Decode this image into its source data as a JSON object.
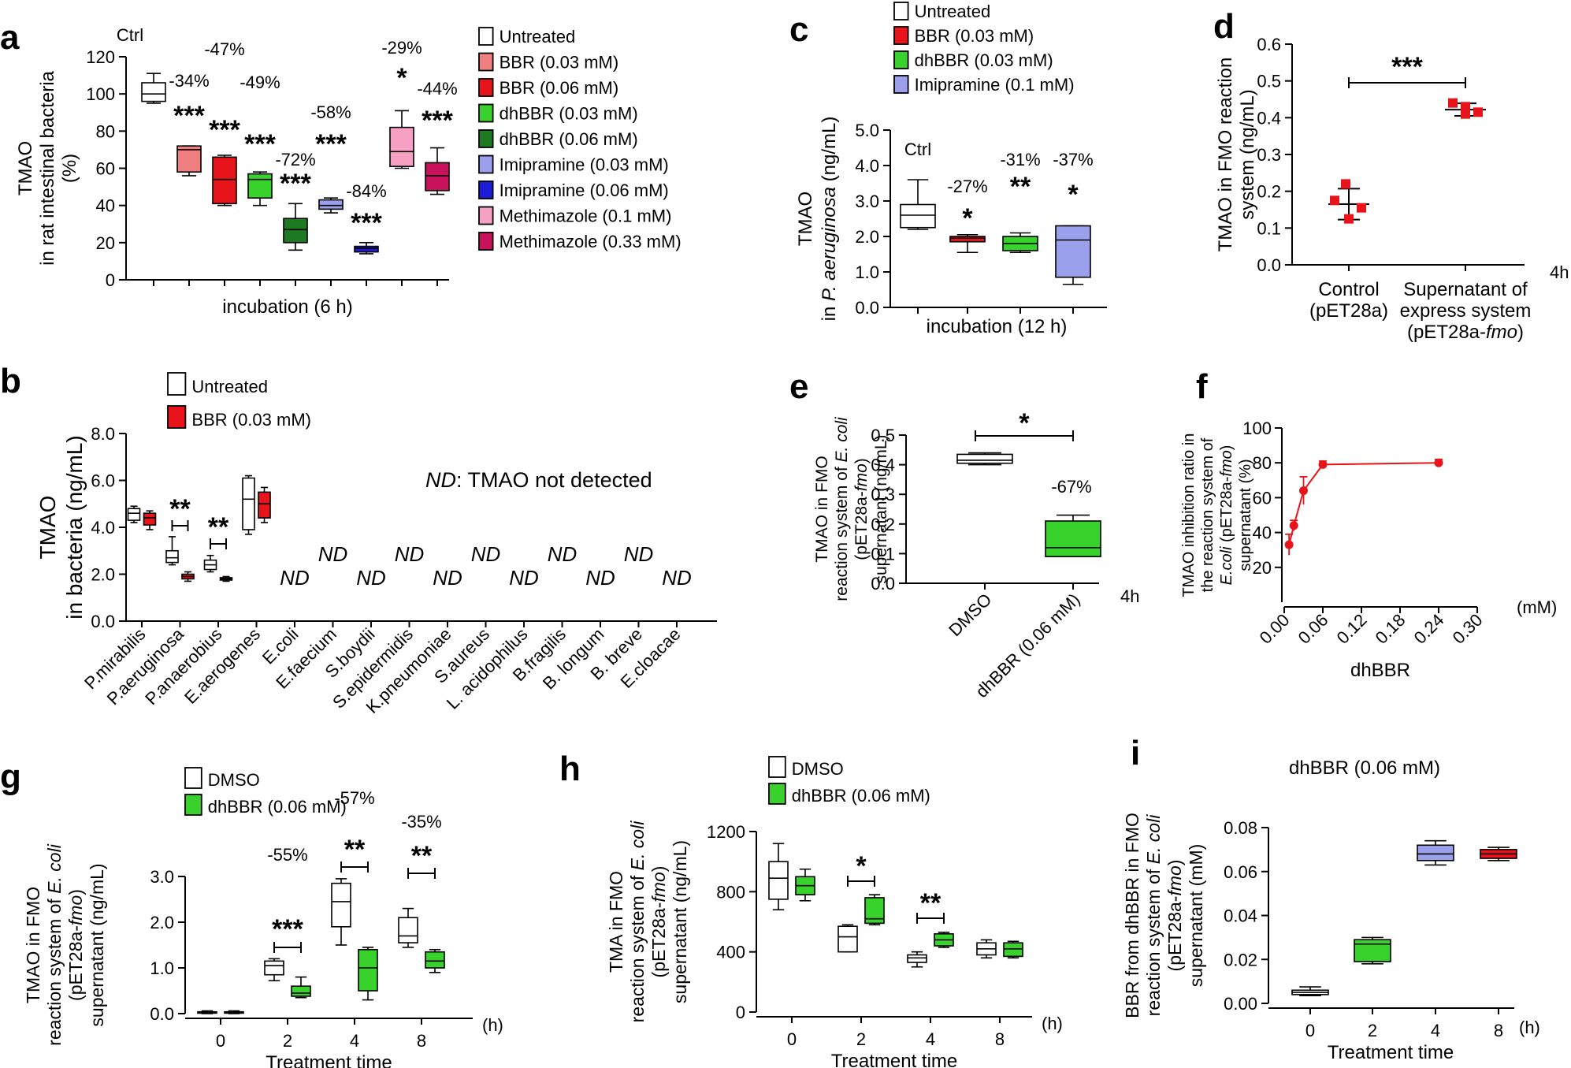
{
  "colors": {
    "white": "#ffffff",
    "light_red": "#f08080",
    "red": "#e8141b",
    "green": "#39d12b",
    "dark_green": "#1e7a22",
    "lavender": "#9aa0ec",
    "blue": "#1c1cd8",
    "pink": "#f6a0c4",
    "magenta": "#c8135c",
    "point_red": "#e8141b",
    "ice_blue": "#c8c8f0"
  },
  "chart_data": [
    {
      "panel": "a",
      "type": "box",
      "ylabel_lines": [
        "TMAO",
        "in rat intestinal bacteria",
        "(%)"
      ],
      "xlabel": "incubation (6 h)",
      "ylim": [
        0,
        120
      ],
      "yticks": [
        "0",
        "20",
        "40",
        "60",
        "80",
        "100",
        "120"
      ],
      "ctrl_label": "Ctrl",
      "groups": [
        {
          "name": "Untreated",
          "color_key": "white",
          "min": 95,
          "q1": 96,
          "median": 100,
          "q3": 106,
          "max": 111,
          "pct": "",
          "sig": ""
        },
        {
          "name": "BBR (0.03 mM)",
          "color_key": "light_red",
          "min": 56,
          "q1": 58,
          "median": 70,
          "q3": 72,
          "max": 72,
          "pct": "-34%",
          "sig": "***"
        },
        {
          "name": "BBR (0.06 mM)",
          "color_key": "red",
          "min": 40,
          "q1": 41,
          "median": 54,
          "q3": 66,
          "max": 67,
          "pct": "-47%",
          "sig": "***"
        },
        {
          "name": "dhBBR (0.03 mM)",
          "color_key": "green",
          "min": 40,
          "q1": 44,
          "median": 54,
          "q3": 57,
          "max": 58,
          "pct": "-49%",
          "sig": "***"
        },
        {
          "name": "dhBBR (0.06 mM)",
          "color_key": "dark_green",
          "min": 16,
          "q1": 20,
          "median": 27,
          "q3": 33,
          "max": 41,
          "pct": "-72%",
          "sig": "***"
        },
        {
          "name": "Imipramine (0.03 mM)",
          "color_key": "lavender",
          "min": 36,
          "q1": 38,
          "median": 40,
          "q3": 43,
          "max": 44,
          "pct": "-58%",
          "sig": "***"
        },
        {
          "name": "Imipramine (0.06 mM)",
          "color_key": "blue",
          "min": 14,
          "q1": 15,
          "median": 17,
          "q3": 18,
          "max": 20,
          "pct": "-84%",
          "sig": "***"
        },
        {
          "name": "Methimazole (0.1 mM)",
          "color_key": "pink",
          "min": 60,
          "q1": 61,
          "median": 69,
          "q3": 82,
          "max": 91,
          "pct": "-29%",
          "sig": "*"
        },
        {
          "name": "Methimazole (0.33 mM)",
          "color_key": "magenta",
          "min": 46,
          "q1": 48,
          "median": 56,
          "q3": 63,
          "max": 71,
          "pct": "-44%",
          "sig": "***"
        }
      ]
    },
    {
      "panel": "b",
      "type": "box",
      "ylabel_lines": [
        "TMAO",
        "in bacteria (ng/mL)"
      ],
      "ylim": [
        0,
        8
      ],
      "yticks": [
        "0.0",
        "2.0",
        "4.0",
        "6.0",
        "8.0"
      ],
      "legend": [
        {
          "label": "Untreated",
          "color_key": "white"
        },
        {
          "label": "BBR (0.03 mM)",
          "color_key": "red"
        }
      ],
      "nd_note_prefix": "ND",
      "nd_note_suffix": ": TMAO not detected",
      "nd_label": "ND",
      "species": [
        "P.mirabilis",
        "P.aeruginosa",
        "P.anaerobius",
        "E.aerogenes",
        "E.coli",
        "E.faecium",
        "S.boydii",
        "S.epidermidis",
        "K.pneumoniae",
        "S.aureus",
        "L. acidophilus",
        "B.fragilis",
        "B. longum",
        "B. breve",
        "E.cloacae"
      ],
      "boxes": [
        {
          "species": 0,
          "untreated": {
            "min": 4.2,
            "q1": 4.3,
            "median": 4.6,
            "q3": 4.8,
            "max": 4.9
          },
          "bbr": {
            "min": 3.9,
            "q1": 4.1,
            "median": 4.4,
            "q3": 4.6,
            "max": 4.7
          }
        },
        {
          "species": 1,
          "untreated": {
            "min": 2.4,
            "q1": 2.5,
            "median": 2.7,
            "q3": 3.0,
            "max": 3.6
          },
          "bbr": {
            "min": 1.7,
            "q1": 1.8,
            "median": 1.9,
            "q3": 2.0,
            "max": 2.1
          }
        },
        {
          "species": 2,
          "untreated": {
            "min": 2.1,
            "q1": 2.2,
            "median": 2.4,
            "q3": 2.6,
            "max": 2.8
          },
          "bbr": {
            "min": 1.7,
            "q1": 1.75,
            "median": 1.8,
            "q3": 1.85,
            "max": 1.9
          }
        },
        {
          "species": 3,
          "untreated": {
            "min": 3.7,
            "q1": 3.9,
            "median": 5.2,
            "q3": 6.1,
            "max": 6.2
          },
          "bbr": {
            "min": 4.2,
            "q1": 4.4,
            "median": 5.0,
            "q3": 5.5,
            "max": 5.7
          }
        }
      ],
      "sig": [
        {
          "species": 1,
          "text": "**"
        },
        {
          "species": 2,
          "text": "**"
        }
      ],
      "nd_species": [
        4,
        5,
        6,
        7,
        8,
        9,
        10,
        11,
        12,
        13,
        14
      ]
    },
    {
      "panel": "c",
      "type": "box",
      "ylabel_line1": "TMAO",
      "ylabel_line2_prefix": "in ",
      "ylabel_line2_italic": "P. aeruginosa",
      "ylabel_line2_suffix": " (ng/mL)",
      "xlabel": "incubation (12 h)",
      "ylim": [
        0,
        5
      ],
      "yticks": [
        "0.0",
        "1.0",
        "2.0",
        "3.0",
        "4.0",
        "5.0"
      ],
      "ctrl_label": "Ctrl",
      "legend": [
        {
          "label": "Untreated",
          "color_key": "white"
        },
        {
          "label": "BBR (0.03 mM)",
          "color_key": "red"
        },
        {
          "label": "dhBBR (0.03 mM)",
          "color_key": "green"
        },
        {
          "label": "Imipramine (0.1 mM)",
          "color_key": "lavender"
        }
      ],
      "groups": [
        {
          "name": "Untreated",
          "color_key": "white",
          "min": 2.2,
          "q1": 2.25,
          "median": 2.6,
          "q3": 2.9,
          "max": 3.6,
          "pct": "",
          "sig": ""
        },
        {
          "name": "BBR (0.03 mM)",
          "color_key": "red",
          "min": 1.55,
          "q1": 1.85,
          "median": 1.95,
          "q3": 2.0,
          "max": 2.05,
          "pct": "-27%",
          "sig": "*"
        },
        {
          "name": "dhBBR (0.03 mM)",
          "color_key": "green",
          "min": 1.55,
          "q1": 1.6,
          "median": 1.8,
          "q3": 2.0,
          "max": 2.1,
          "pct": "-31%",
          "sig": "**"
        },
        {
          "name": "Imipramine (0.1 mM)",
          "color_key": "lavender",
          "min": 0.65,
          "q1": 0.85,
          "median": 1.9,
          "q3": 2.3,
          "max": 2.3,
          "pct": "-37%",
          "sig": "*"
        }
      ]
    },
    {
      "panel": "d",
      "type": "scatter",
      "ylabel_lines": [
        "TMAO in FMO reaction",
        "system (ng/mL)"
      ],
      "ylim": [
        0,
        0.6
      ],
      "yticks": [
        "0.0",
        "0.1",
        "0.2",
        "0.3",
        "0.4",
        "0.5",
        "0.6"
      ],
      "time_label": "4h",
      "sig": "***",
      "groups": [
        {
          "label_lines": [
            "Control",
            "(pET28a)"
          ],
          "mean": 0.165,
          "sd": 0.042,
          "points": [
            0.22,
            0.175,
            0.155,
            0.125
          ]
        },
        {
          "label_line1": "Supernatant of",
          "label_line2": "express system",
          "label_line3_prefix": "(pET28a-",
          "label_line3_italic": "fmo",
          "label_line3_suffix": ")",
          "mean": 0.422,
          "sd": 0.017,
          "points": [
            0.44,
            0.43,
            0.415,
            0.41
          ]
        }
      ]
    },
    {
      "panel": "e",
      "type": "box",
      "ylabel_line1": "TMAO in  FMO",
      "ylabel_line2_prefix": "reaction system of ",
      "ylabel_line2_italic": "E. coli",
      "ylabel_line3_prefix": "(pET28a-",
      "ylabel_line3_italic": "fmo",
      "ylabel_line3_suffix": ")",
      "ylabel_line4": "supernatant (ng/mL)",
      "ylim": [
        0,
        0.5
      ],
      "yticks": [
        "0.0",
        "0.1",
        "0.2",
        "0.3",
        "0.4",
        "0.5"
      ],
      "time_label": "4h",
      "pct": "-67%",
      "sig": "*",
      "groups": [
        {
          "name": "DMSO",
          "color_key": "white",
          "min": 0.4,
          "q1": 0.405,
          "median": 0.415,
          "q3": 0.435,
          "max": 0.44
        },
        {
          "name": "dhBBR (0.06 mM)",
          "color_key": "green",
          "min": 0.09,
          "q1": 0.09,
          "median": 0.12,
          "q3": 0.21,
          "max": 0.23
        }
      ]
    },
    {
      "panel": "f",
      "type": "line",
      "ylabel_line1": "TMAO inhibition ratio in",
      "ylabel_line2": "the reaction system of",
      "ylabel_line3_italic": "E.coli",
      "ylabel_line3_suffix": " (pET28a-",
      "ylabel_line3_italic2": "fmo",
      "ylabel_line3_end": ")",
      "ylabel_line4": "supernatant (%)",
      "xlabel": "dhBBR",
      "xunit": "(mM)",
      "xlim": [
        0,
        0.3
      ],
      "ylim": [
        0,
        100
      ],
      "xticks": [
        "0.00",
        "0.06",
        "0.12",
        "0.18",
        "0.24",
        "0.30"
      ],
      "yticks": [
        "20",
        "40",
        "60",
        "80",
        "100"
      ],
      "x": [
        0.0075,
        0.015,
        0.03,
        0.06,
        0.24
      ],
      "y": [
        33,
        44,
        64,
        79,
        80
      ],
      "err": [
        6,
        3,
        8,
        2,
        2
      ]
    },
    {
      "panel": "g",
      "type": "box",
      "ylabel_line1": "TMAO in FMO",
      "ylabel_line2_prefix": "reaction system of ",
      "ylabel_line2_italic": "E. coli",
      "ylabel_line3_prefix": "(pET28a-",
      "ylabel_line3_italic": "fmo",
      "ylabel_line3_suffix": ")",
      "ylabel_line4": "supernatant (ng/mL)",
      "xlabel": "Treatment time",
      "xunit": "(h)",
      "ylim": [
        0,
        3
      ],
      "yticks": [
        "0.0",
        "1.0",
        "2.0",
        "3.0"
      ],
      "categories": [
        "0",
        "2",
        "4",
        "8"
      ],
      "legend": [
        {
          "label": "DMSO",
          "color_key": "white"
        },
        {
          "label": "dhBBR (0.06 mM)",
          "color_key": "green"
        }
      ],
      "series": [
        {
          "name": "DMSO",
          "color_key": "white",
          "boxes": [
            {
              "min": 0.0,
              "q1": 0.01,
              "median": 0.02,
              "q3": 0.04,
              "max": 0.06
            },
            {
              "min": 0.72,
              "q1": 0.85,
              "median": 1.05,
              "q3": 1.15,
              "max": 1.2
            },
            {
              "min": 1.5,
              "q1": 1.9,
              "median": 2.45,
              "q3": 2.85,
              "max": 2.95
            },
            {
              "min": 1.45,
              "q1": 1.55,
              "median": 1.7,
              "q3": 2.1,
              "max": 2.3
            }
          ]
        },
        {
          "name": "dhBBR (0.06 mM)",
          "color_key": "green",
          "boxes": [
            {
              "min": 0.0,
              "q1": 0.01,
              "median": 0.02,
              "q3": 0.04,
              "max": 0.06
            },
            {
              "min": 0.35,
              "q1": 0.38,
              "median": 0.45,
              "q3": 0.6,
              "max": 0.8
            },
            {
              "min": 0.3,
              "q1": 0.5,
              "median": 1.0,
              "q3": 1.4,
              "max": 1.45
            },
            {
              "min": 0.9,
              "q1": 1.0,
              "median": 1.15,
              "q3": 1.35,
              "max": 1.4
            }
          ]
        }
      ],
      "annotations": [
        {
          "category": 1,
          "pct": "-55%",
          "sig": "***"
        },
        {
          "category": 2,
          "pct": "-57%",
          "sig": "**"
        },
        {
          "category": 3,
          "pct": "-35%",
          "sig": "**"
        }
      ]
    },
    {
      "panel": "h",
      "type": "box",
      "ylabel_line1": "TMA in FMO",
      "ylabel_line2_prefix": "reaction system of ",
      "ylabel_line2_italic": "E. coli",
      "ylabel_line3_prefix": "(pET28a-",
      "ylabel_line3_italic": "fmo",
      "ylabel_line3_suffix": ")",
      "ylabel_line4": "supernatant (ng/mL)",
      "xlabel": "Treatment time",
      "xunit": "(h)",
      "ylim": [
        0,
        1200
      ],
      "yticks": [
        "0",
        "400",
        "800",
        "1200"
      ],
      "categories": [
        "0",
        "2",
        "4",
        "8"
      ],
      "legend": [
        {
          "label": "DMSO",
          "color_key": "white"
        },
        {
          "label": "dhBBR (0.06 mM)",
          "color_key": "green"
        }
      ],
      "series": [
        {
          "name": "DMSO",
          "color_key": "white",
          "boxes": [
            {
              "min": 680,
              "q1": 750,
              "median": 890,
              "q3": 1000,
              "max": 1120
            },
            {
              "min": 400,
              "q1": 400,
              "median": 500,
              "q3": 570,
              "max": 580
            },
            {
              "min": 300,
              "q1": 330,
              "median": 360,
              "q3": 380,
              "max": 400
            },
            {
              "min": 360,
              "q1": 380,
              "median": 420,
              "q3": 460,
              "max": 480
            }
          ]
        },
        {
          "name": "dhBBR (0.06 mM)",
          "color_key": "green",
          "boxes": [
            {
              "min": 740,
              "q1": 780,
              "median": 840,
              "q3": 900,
              "max": 950
            },
            {
              "min": 580,
              "q1": 590,
              "median": 620,
              "q3": 760,
              "max": 780
            },
            {
              "min": 430,
              "q1": 440,
              "median": 480,
              "q3": 520,
              "max": 530
            },
            {
              "min": 360,
              "q1": 370,
              "median": 420,
              "q3": 460,
              "max": 470
            }
          ]
        }
      ],
      "annotations": [
        {
          "category": 1,
          "pct": "",
          "sig": "*"
        },
        {
          "category": 2,
          "pct": "",
          "sig": "**"
        }
      ]
    },
    {
      "panel": "i",
      "type": "box",
      "title": "dhBBR (0.06 mM)",
      "ylabel_line1": "BBR from dhBBR in FMO",
      "ylabel_line2_prefix": "reaction system of ",
      "ylabel_line2_italic": "E. coli",
      "ylabel_line3_prefix": "(pET28a-",
      "ylabel_line3_italic": "fmo",
      "ylabel_line3_suffix": ")",
      "ylabel_line4": "supernatant (mM)",
      "xlabel": "Treatment time",
      "xunit": "(h)",
      "ylim": [
        0,
        0.08
      ],
      "yticks": [
        "0.00",
        "0.02",
        "0.04",
        "0.06",
        "0.08"
      ],
      "categories": [
        "0",
        "2",
        "4",
        "8"
      ],
      "groups": [
        {
          "color_key": "white",
          "min": 0.0035,
          "q1": 0.004,
          "median": 0.005,
          "q3": 0.006,
          "max": 0.0075
        },
        {
          "color_key": "green",
          "min": 0.018,
          "q1": 0.019,
          "median": 0.027,
          "q3": 0.029,
          "max": 0.03
        },
        {
          "color_key": "lavender",
          "min": 0.063,
          "q1": 0.065,
          "median": 0.068,
          "q3": 0.072,
          "max": 0.074
        },
        {
          "color_key": "red",
          "min": 0.065,
          "q1": 0.066,
          "median": 0.068,
          "q3": 0.07,
          "max": 0.071
        }
      ]
    }
  ]
}
